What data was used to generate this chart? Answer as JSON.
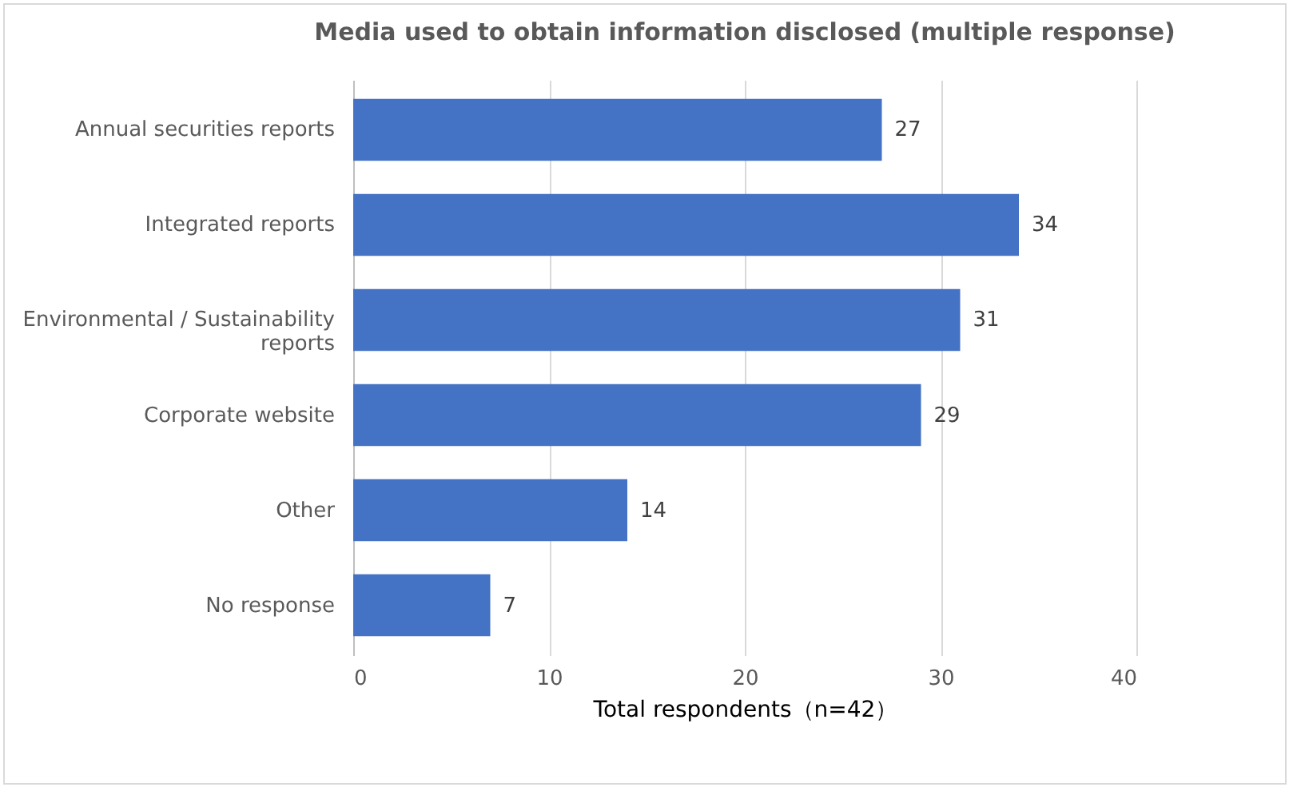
{
  "chart_data": {
    "type": "bar",
    "orientation": "horizontal",
    "title": "Media used to obtain information disclosed (multiple response)",
    "xlabel": "Total respondents（n=42）",
    "categories": [
      "Annual securities reports",
      "Integrated reports",
      "Environmental / Sustainability reports",
      "Corporate website",
      "Other",
      "No response"
    ],
    "values": [
      27,
      34,
      31,
      29,
      14,
      7
    ],
    "color": "#4472c4",
    "xlim": [
      0,
      40
    ],
    "xticks": [
      0,
      10,
      20,
      30,
      40
    ],
    "grid": "x",
    "data_labels": true
  }
}
